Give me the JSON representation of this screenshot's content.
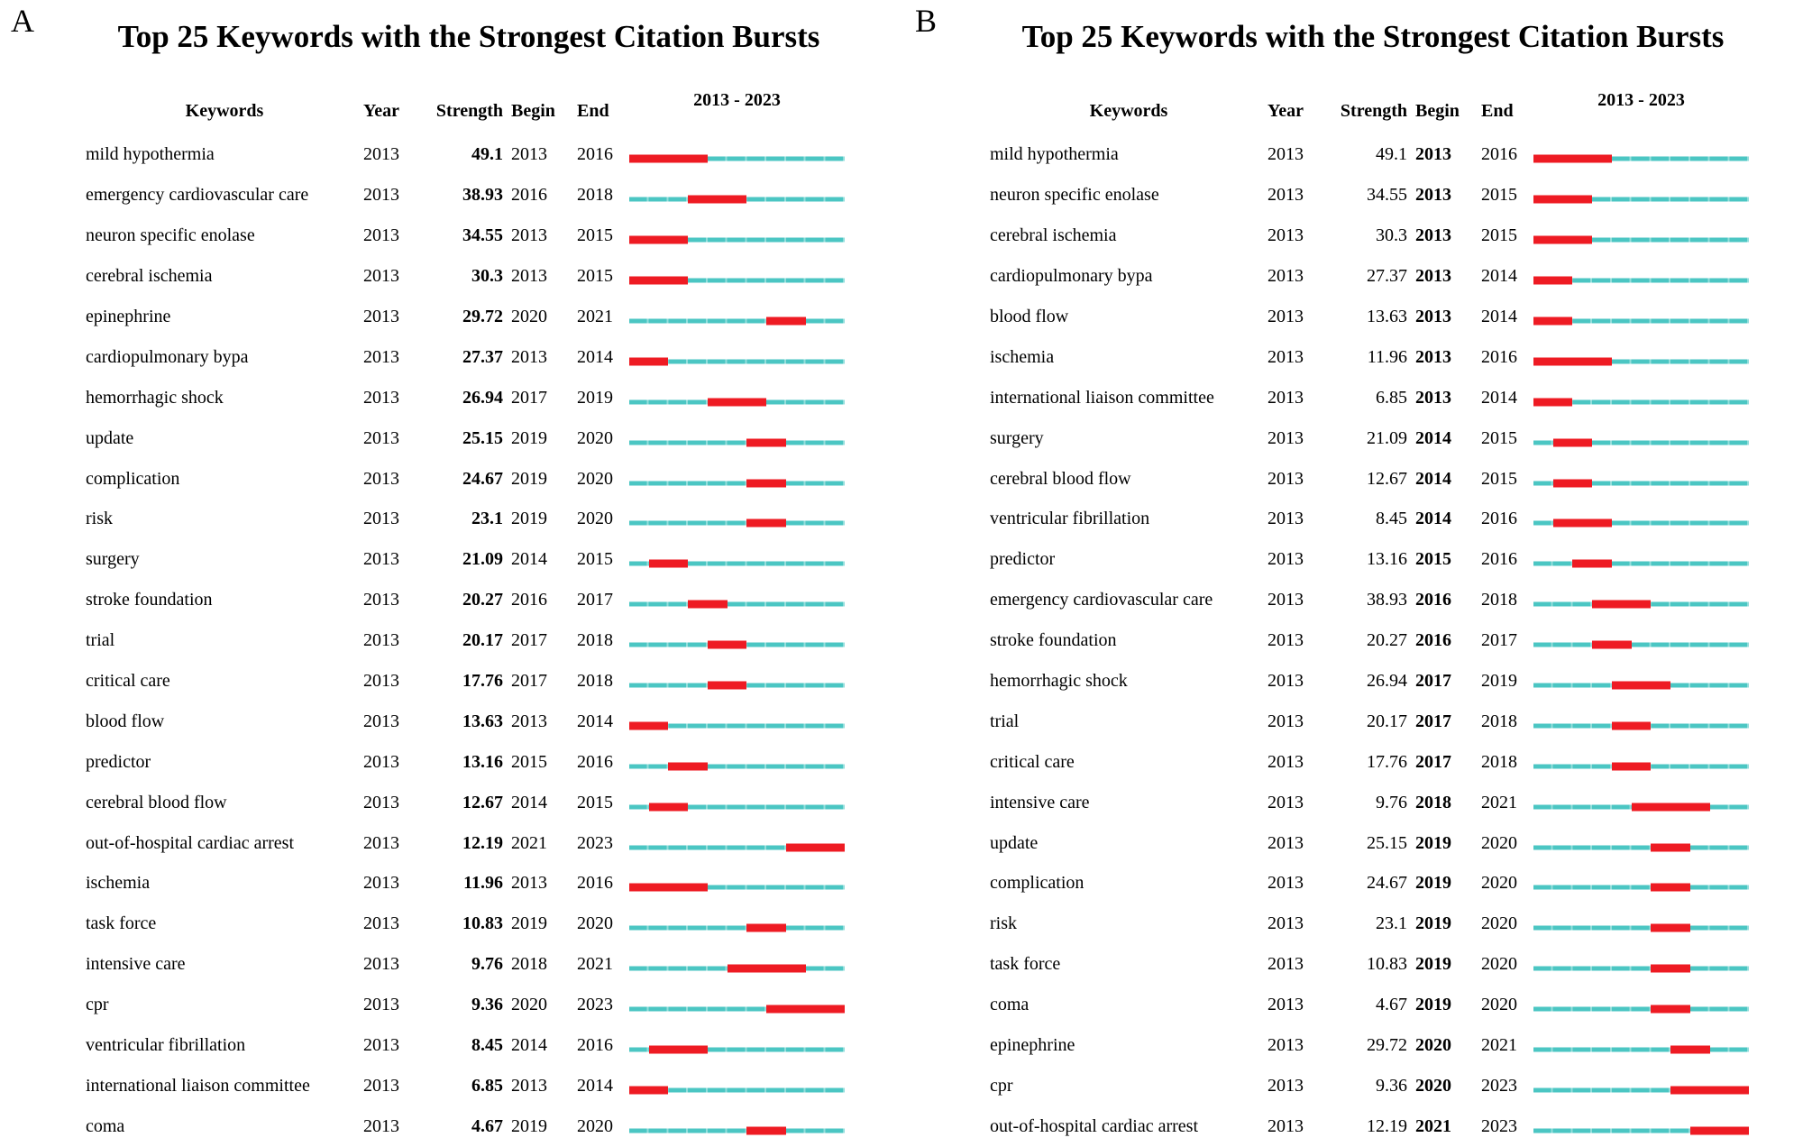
{
  "colors": {
    "burst_red": "#ee1b23",
    "timeline_teal": "#4bc6c3",
    "timeline_teal_gap": "#93dedb"
  },
  "chart_data": [
    {
      "type": "gantt",
      "panel": "A",
      "title": "Top 25 Keywords with the Strongest Citation Bursts",
      "columns": [
        "Keywords",
        "Year",
        "Strength",
        "Begin",
        "End"
      ],
      "range_label": "2013 - 2023",
      "timeline_range": [
        2013,
        2023
      ],
      "bold_column": "strength",
      "rows": [
        {
          "keyword": "mild hypothermia",
          "year": 2013,
          "strength": 49.1,
          "begin": 2013,
          "end": 2016
        },
        {
          "keyword": "emergency cardiovascular care",
          "year": 2013,
          "strength": 38.93,
          "begin": 2016,
          "end": 2018
        },
        {
          "keyword": "neuron specific enolase",
          "year": 2013,
          "strength": 34.55,
          "begin": 2013,
          "end": 2015
        },
        {
          "keyword": "cerebral ischemia",
          "year": 2013,
          "strength": 30.3,
          "begin": 2013,
          "end": 2015
        },
        {
          "keyword": "epinephrine",
          "year": 2013,
          "strength": 29.72,
          "begin": 2020,
          "end": 2021
        },
        {
          "keyword": "cardiopulmonary bypa",
          "year": 2013,
          "strength": 27.37,
          "begin": 2013,
          "end": 2014
        },
        {
          "keyword": "hemorrhagic shock",
          "year": 2013,
          "strength": 26.94,
          "begin": 2017,
          "end": 2019
        },
        {
          "keyword": "update",
          "year": 2013,
          "strength": 25.15,
          "begin": 2019,
          "end": 2020
        },
        {
          "keyword": "complication",
          "year": 2013,
          "strength": 24.67,
          "begin": 2019,
          "end": 2020
        },
        {
          "keyword": "risk",
          "year": 2013,
          "strength": 23.1,
          "begin": 2019,
          "end": 2020
        },
        {
          "keyword": "surgery",
          "year": 2013,
          "strength": 21.09,
          "begin": 2014,
          "end": 2015
        },
        {
          "keyword": "stroke foundation",
          "year": 2013,
          "strength": 20.27,
          "begin": 2016,
          "end": 2017
        },
        {
          "keyword": "trial",
          "year": 2013,
          "strength": 20.17,
          "begin": 2017,
          "end": 2018
        },
        {
          "keyword": "critical care",
          "year": 2013,
          "strength": 17.76,
          "begin": 2017,
          "end": 2018
        },
        {
          "keyword": "blood flow",
          "year": 2013,
          "strength": 13.63,
          "begin": 2013,
          "end": 2014
        },
        {
          "keyword": "predictor",
          "year": 2013,
          "strength": 13.16,
          "begin": 2015,
          "end": 2016
        },
        {
          "keyword": "cerebral blood flow",
          "year": 2013,
          "strength": 12.67,
          "begin": 2014,
          "end": 2015
        },
        {
          "keyword": "out-of-hospital cardiac arrest",
          "year": 2013,
          "strength": 12.19,
          "begin": 2021,
          "end": 2023
        },
        {
          "keyword": "ischemia",
          "year": 2013,
          "strength": 11.96,
          "begin": 2013,
          "end": 2016
        },
        {
          "keyword": "task force",
          "year": 2013,
          "strength": 10.83,
          "begin": 2019,
          "end": 2020
        },
        {
          "keyword": "intensive care",
          "year": 2013,
          "strength": 9.76,
          "begin": 2018,
          "end": 2021
        },
        {
          "keyword": "cpr",
          "year": 2013,
          "strength": 9.36,
          "begin": 2020,
          "end": 2023
        },
        {
          "keyword": "ventricular fibrillation",
          "year": 2013,
          "strength": 8.45,
          "begin": 2014,
          "end": 2016
        },
        {
          "keyword": "international liaison committee",
          "year": 2013,
          "strength": 6.85,
          "begin": 2013,
          "end": 2014
        },
        {
          "keyword": "coma",
          "year": 2013,
          "strength": 4.67,
          "begin": 2019,
          "end": 2020
        }
      ]
    },
    {
      "type": "gantt",
      "panel": "B",
      "title": "Top 25 Keywords with the Strongest Citation Bursts",
      "columns": [
        "Keywords",
        "Year",
        "Strength",
        "Begin",
        "End"
      ],
      "range_label": "2013 - 2023",
      "timeline_range": [
        2013,
        2023
      ],
      "bold_column": "begin",
      "rows": [
        {
          "keyword": "mild hypothermia",
          "year": 2013,
          "strength": 49.1,
          "begin": 2013,
          "end": 2016
        },
        {
          "keyword": "neuron specific enolase",
          "year": 2013,
          "strength": 34.55,
          "begin": 2013,
          "end": 2015
        },
        {
          "keyword": "cerebral ischemia",
          "year": 2013,
          "strength": 30.3,
          "begin": 2013,
          "end": 2015
        },
        {
          "keyword": "cardiopulmonary bypa",
          "year": 2013,
          "strength": 27.37,
          "begin": 2013,
          "end": 2014
        },
        {
          "keyword": "blood flow",
          "year": 2013,
          "strength": 13.63,
          "begin": 2013,
          "end": 2014
        },
        {
          "keyword": "ischemia",
          "year": 2013,
          "strength": 11.96,
          "begin": 2013,
          "end": 2016
        },
        {
          "keyword": "international liaison committee",
          "year": 2013,
          "strength": 6.85,
          "begin": 2013,
          "end": 2014
        },
        {
          "keyword": "surgery",
          "year": 2013,
          "strength": 21.09,
          "begin": 2014,
          "end": 2015
        },
        {
          "keyword": "cerebral blood flow",
          "year": 2013,
          "strength": 12.67,
          "begin": 2014,
          "end": 2015
        },
        {
          "keyword": "ventricular fibrillation",
          "year": 2013,
          "strength": 8.45,
          "begin": 2014,
          "end": 2016
        },
        {
          "keyword": "predictor",
          "year": 2013,
          "strength": 13.16,
          "begin": 2015,
          "end": 2016
        },
        {
          "keyword": "emergency cardiovascular care",
          "year": 2013,
          "strength": 38.93,
          "begin": 2016,
          "end": 2018
        },
        {
          "keyword": "stroke foundation",
          "year": 2013,
          "strength": 20.27,
          "begin": 2016,
          "end": 2017
        },
        {
          "keyword": "hemorrhagic shock",
          "year": 2013,
          "strength": 26.94,
          "begin": 2017,
          "end": 2019
        },
        {
          "keyword": "trial",
          "year": 2013,
          "strength": 20.17,
          "begin": 2017,
          "end": 2018
        },
        {
          "keyword": "critical care",
          "year": 2013,
          "strength": 17.76,
          "begin": 2017,
          "end": 2018
        },
        {
          "keyword": "intensive care",
          "year": 2013,
          "strength": 9.76,
          "begin": 2018,
          "end": 2021
        },
        {
          "keyword": "update",
          "year": 2013,
          "strength": 25.15,
          "begin": 2019,
          "end": 2020
        },
        {
          "keyword": "complication",
          "year": 2013,
          "strength": 24.67,
          "begin": 2019,
          "end": 2020
        },
        {
          "keyword": "risk",
          "year": 2013,
          "strength": 23.1,
          "begin": 2019,
          "end": 2020
        },
        {
          "keyword": "task force",
          "year": 2013,
          "strength": 10.83,
          "begin": 2019,
          "end": 2020
        },
        {
          "keyword": "coma",
          "year": 2013,
          "strength": 4.67,
          "begin": 2019,
          "end": 2020
        },
        {
          "keyword": "epinephrine",
          "year": 2013,
          "strength": 29.72,
          "begin": 2020,
          "end": 2021
        },
        {
          "keyword": "cpr",
          "year": 2013,
          "strength": 9.36,
          "begin": 2020,
          "end": 2023
        },
        {
          "keyword": "out-of-hospital cardiac arrest",
          "year": 2013,
          "strength": 12.19,
          "begin": 2021,
          "end": 2023
        }
      ]
    }
  ]
}
